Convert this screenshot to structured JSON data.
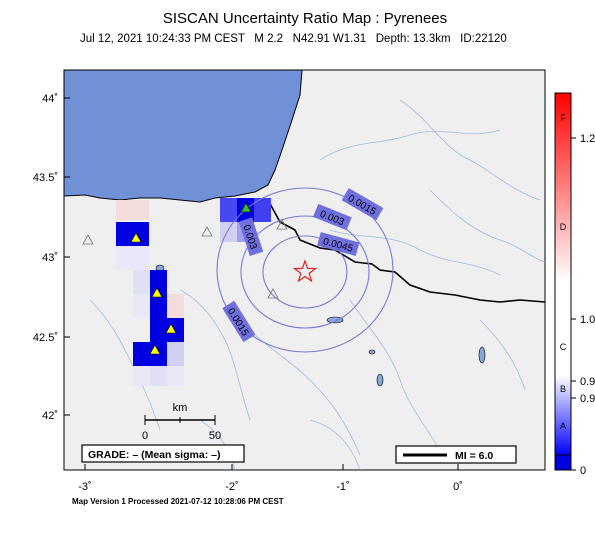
{
  "header": {
    "title": "SISCAN Uncertainty Ratio Map : Pyrenees",
    "subtitle": "Jul 12, 2021 10:24:33 PM CEST   M 2.2   N42.91 W1.31   Depth: 13.3km   ID:22120"
  },
  "axes": {
    "lat_ticks": [
      "44˚",
      "43.5˚",
      "43˚",
      "42.5˚",
      "42˚"
    ],
    "lon_ticks": [
      "-3˚",
      "-2˚",
      "-1˚",
      "0˚"
    ]
  },
  "contours": {
    "labels": [
      "0.0015",
      "0.003",
      "0.0045",
      "0.003",
      "0.0015"
    ]
  },
  "scale_bar": {
    "unit": "km",
    "start": "0",
    "end": "50"
  },
  "grade_box": {
    "text": "GRADE: – (Mean sigma: –)"
  },
  "mi_box": {
    "text": "MI = 6.0"
  },
  "colorbar": {
    "values": [
      "1.2",
      "1.0",
      "0.9",
      "0.9",
      "0"
    ],
    "grades": [
      "F",
      "D",
      "C",
      "B",
      "A"
    ],
    "colors": {
      "top": "#ff0000",
      "mid": "#ffffff",
      "bottom": "#0000ff"
    }
  },
  "footer": {
    "text": "Map Version 1 Processed 2021-07-12 10:28:06 PM CEST"
  },
  "icons": {
    "epicenter": "red-star-icon",
    "station_active": "yellow-triangle-icon",
    "station_inactive": "gray-triangle-icon"
  }
}
